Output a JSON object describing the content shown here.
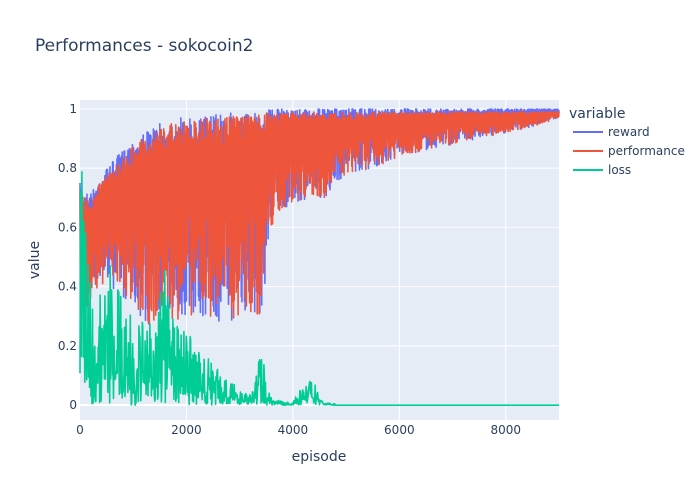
{
  "chart_data": {
    "type": "line",
    "title": "Performances - sokocoin2",
    "xlabel": "episode",
    "ylabel": "value",
    "xlim": [
      0,
      9000
    ],
    "ylim": [
      -0.05,
      1.03
    ],
    "x_ticks": [
      0,
      2000,
      4000,
      6000,
      8000
    ],
    "x_tick_labels": [
      "0",
      "2000",
      "4000",
      "6000",
      "8000"
    ],
    "y_ticks": [
      0,
      0.2,
      0.4,
      0.6,
      0.8,
      1
    ],
    "y_tick_labels": [
      "0",
      "0.2",
      "0.4",
      "0.6",
      "0.8",
      "1"
    ],
    "grid": true,
    "legend": {
      "title": "variable",
      "placement": "right"
    },
    "series": [
      {
        "name": "reward",
        "color": "#636efa",
        "x": [
          0,
          100,
          200,
          300,
          400,
          500,
          600,
          700,
          800,
          900,
          1000,
          1100,
          1200,
          1300,
          1400,
          1500,
          1600,
          1700,
          1800,
          1900,
          2000,
          2200,
          2400,
          2600,
          2800,
          3000,
          3200,
          3400,
          3600,
          3800,
          4000,
          4300,
          4600,
          5000,
          5500,
          6000,
          6500,
          7000,
          7500,
          8000,
          8500,
          9000
        ],
        "low": [
          0.3,
          0.25,
          0.35,
          0.4,
          0.38,
          0.42,
          0.4,
          0.38,
          0.36,
          0.34,
          0.3,
          0.3,
          0.28,
          0.27,
          0.28,
          0.3,
          0.28,
          0.3,
          0.28,
          0.3,
          0.3,
          0.29,
          0.29,
          0.28,
          0.27,
          0.3,
          0.3,
          0.3,
          0.58,
          0.66,
          0.68,
          0.7,
          0.7,
          0.78,
          0.8,
          0.84,
          0.86,
          0.88,
          0.9,
          0.92,
          0.94,
          0.97
        ],
        "high": [
          0.75,
          0.72,
          0.72,
          0.74,
          0.78,
          0.8,
          0.82,
          0.84,
          0.86,
          0.88,
          0.9,
          0.91,
          0.92,
          0.93,
          0.94,
          0.95,
          0.95,
          0.96,
          0.96,
          0.97,
          0.97,
          0.97,
          0.98,
          0.98,
          0.99,
          0.99,
          0.99,
          1.0,
          1.0,
          1.0,
          1.0,
          1.0,
          1.0,
          1.0,
          1.0,
          1.0,
          1.0,
          1.0,
          1.0,
          1.0,
          1.0,
          1.0
        ]
      },
      {
        "name": "performance",
        "color": "#ef553b",
        "x": [
          0,
          100,
          200,
          300,
          400,
          500,
          600,
          700,
          800,
          900,
          1000,
          1100,
          1200,
          1300,
          1400,
          1500,
          1600,
          1700,
          1800,
          1900,
          2000,
          2200,
          2400,
          2600,
          2800,
          3000,
          3200,
          3400,
          3600,
          3800,
          4000,
          4300,
          4600,
          5000,
          5500,
          6000,
          6500,
          7000,
          7500,
          8000,
          8500,
          9000
        ],
        "low": [
          0.3,
          0.25,
          0.35,
          0.4,
          0.38,
          0.42,
          0.4,
          0.38,
          0.36,
          0.34,
          0.3,
          0.3,
          0.28,
          0.27,
          0.28,
          0.3,
          0.28,
          0.3,
          0.28,
          0.3,
          0.3,
          0.3,
          0.3,
          0.29,
          0.28,
          0.3,
          0.3,
          0.3,
          0.58,
          0.66,
          0.68,
          0.7,
          0.7,
          0.78,
          0.8,
          0.84,
          0.86,
          0.88,
          0.9,
          0.92,
          0.94,
          0.97
        ],
        "high": [
          0.74,
          0.7,
          0.7,
          0.72,
          0.76,
          0.78,
          0.8,
          0.82,
          0.84,
          0.86,
          0.88,
          0.89,
          0.9,
          0.92,
          0.93,
          0.94,
          0.94,
          0.95,
          0.95,
          0.96,
          0.96,
          0.96,
          0.97,
          0.97,
          0.98,
          0.98,
          0.98,
          0.99,
          0.99,
          0.99,
          0.99,
          0.99,
          0.99,
          0.99,
          0.99,
          0.99,
          0.99,
          0.99,
          0.99,
          0.99,
          0.99,
          0.99
        ]
      },
      {
        "name": "loss",
        "color": "#00cc96",
        "x": [
          0,
          50,
          100,
          200,
          300,
          400,
          500,
          600,
          700,
          800,
          900,
          1000,
          1200,
          1400,
          1600,
          1800,
          2000,
          2200,
          2400,
          2600,
          2800,
          3000,
          3200,
          3400,
          3600,
          4000,
          4200,
          4400,
          4600,
          5000,
          6000,
          7000,
          8000,
          9000
        ],
        "low": [
          0,
          0,
          0,
          0,
          0,
          0,
          0,
          0,
          0,
          0,
          0,
          0,
          0,
          0,
          0,
          0,
          0,
          0,
          0,
          0,
          0,
          0,
          0,
          0,
          0,
          0,
          0,
          0,
          0,
          0,
          0,
          0,
          0,
          0
        ],
        "high": [
          0.75,
          1.0,
          0.6,
          0.47,
          0.47,
          0.42,
          0.4,
          0.55,
          0.55,
          0.38,
          0.33,
          0.3,
          0.28,
          0.27,
          0.5,
          0.27,
          0.25,
          0.2,
          0.16,
          0.12,
          0.08,
          0.06,
          0.04,
          0.19,
          0.02,
          0.01,
          0.08,
          0.08,
          0.01,
          0.0,
          0.0,
          0.0,
          0.0,
          0.0
        ]
      }
    ]
  }
}
